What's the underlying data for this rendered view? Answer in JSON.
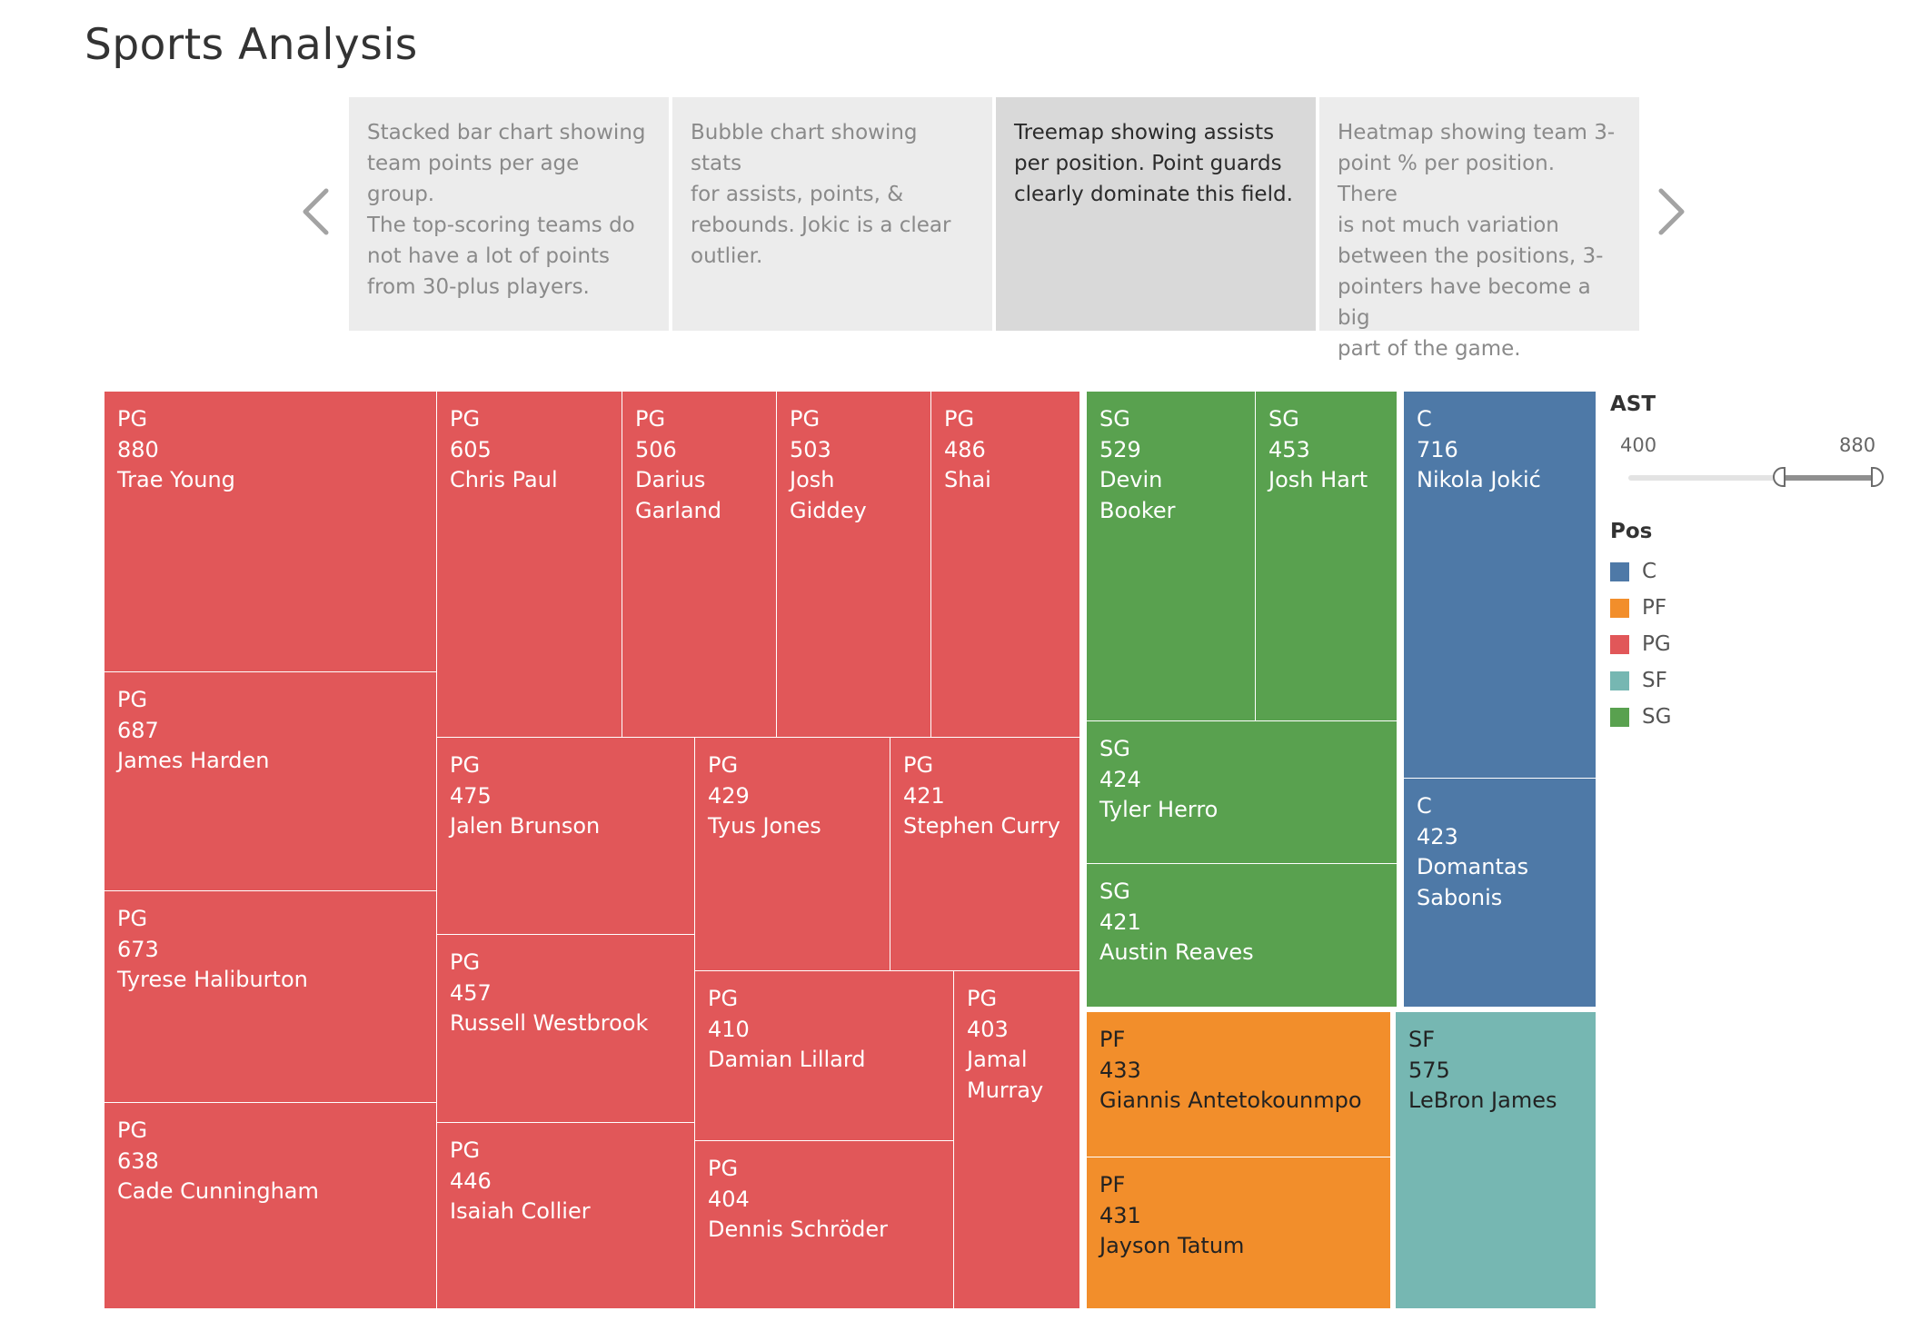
{
  "title": "Sports Analysis",
  "story_points": [
    {
      "text": "Stacked bar chart showing\nteam points per age group.\nThe top-scoring teams do\nnot have a lot of points\nfrom 30-plus players.",
      "active": false
    },
    {
      "text": "Bubble chart showing stats\nfor assists, points, &\nrebounds. Jokic is a clear\noutlier.",
      "active": false
    },
    {
      "text": "Treemap showing assists\nper position. Point guards\nclearly dominate this field.",
      "active": true
    },
    {
      "text": "Heatmap showing team 3-\npoint % per position. There\nis  not much variation\nbetween the positions, 3-\npointers have become a big\npart of the game.",
      "active": false
    }
  ],
  "nav": {
    "prev_icon": "chevron-left-icon",
    "next_icon": "chevron-right-icon"
  },
  "filter": {
    "title": "AST",
    "min_label": "400",
    "max_label": "880",
    "min": 400,
    "max": 880,
    "selected_min": 400,
    "selected_max": 880
  },
  "legend": {
    "title": "Pos",
    "items": [
      {
        "label": "C",
        "color": "#4e79a7"
      },
      {
        "label": "PF",
        "color": "#f28e2b"
      },
      {
        "label": "PG",
        "color": "#e15759"
      },
      {
        "label": "SF",
        "color": "#76b7b2"
      },
      {
        "label": "SG",
        "color": "#59a14f"
      }
    ]
  },
  "chart_data": {
    "type": "treemap",
    "measure": "AST",
    "color_by": "Pos",
    "label_fields": [
      "Pos",
      "AST",
      "Player"
    ],
    "values": [
      {
        "pos": "PG",
        "player": "Trae Young",
        "ast": 880
      },
      {
        "pos": "PG",
        "player": "James Harden",
        "ast": 687
      },
      {
        "pos": "PG",
        "player": "Tyrese Haliburton",
        "ast": 673
      },
      {
        "pos": "PG",
        "player": "Cade Cunningham",
        "ast": 638
      },
      {
        "pos": "PG",
        "player": "Chris Paul",
        "ast": 605
      },
      {
        "pos": "PG",
        "player": "Darius\nGarland",
        "ast": 506
      },
      {
        "pos": "PG",
        "player": "Josh Giddey",
        "ast": 503
      },
      {
        "pos": "PG",
        "player": "Shai",
        "ast": 486
      },
      {
        "pos": "PG",
        "player": "Jalen Brunson",
        "ast": 475
      },
      {
        "pos": "PG",
        "player": "Tyus Jones",
        "ast": 429
      },
      {
        "pos": "PG",
        "player": "Stephen Curry",
        "ast": 421
      },
      {
        "pos": "PG",
        "player": "Russell Westbrook",
        "ast": 457
      },
      {
        "pos": "PG",
        "player": "Isaiah Collier",
        "ast": 446
      },
      {
        "pos": "PG",
        "player": "Damian Lillard",
        "ast": 410
      },
      {
        "pos": "PG",
        "player": "Jamal\nMurray",
        "ast": 403
      },
      {
        "pos": "PG",
        "player": "Dennis Schröder",
        "ast": 404
      },
      {
        "pos": "SG",
        "player": "Devin Booker",
        "ast": 529
      },
      {
        "pos": "SG",
        "player": "Josh Hart",
        "ast": 453
      },
      {
        "pos": "SG",
        "player": "Tyler Herro",
        "ast": 424
      },
      {
        "pos": "SG",
        "player": "Austin Reaves",
        "ast": 421
      },
      {
        "pos": "C",
        "player": "Nikola Jokić",
        "ast": 716
      },
      {
        "pos": "C",
        "player": "Domantas\nSabonis",
        "ast": 423
      },
      {
        "pos": "PF",
        "player": "Giannis Antetokounmpo",
        "ast": 433
      },
      {
        "pos": "PF",
        "player": "Jayson Tatum",
        "ast": 431
      },
      {
        "pos": "SF",
        "player": "LeBron James",
        "ast": 575
      }
    ]
  }
}
